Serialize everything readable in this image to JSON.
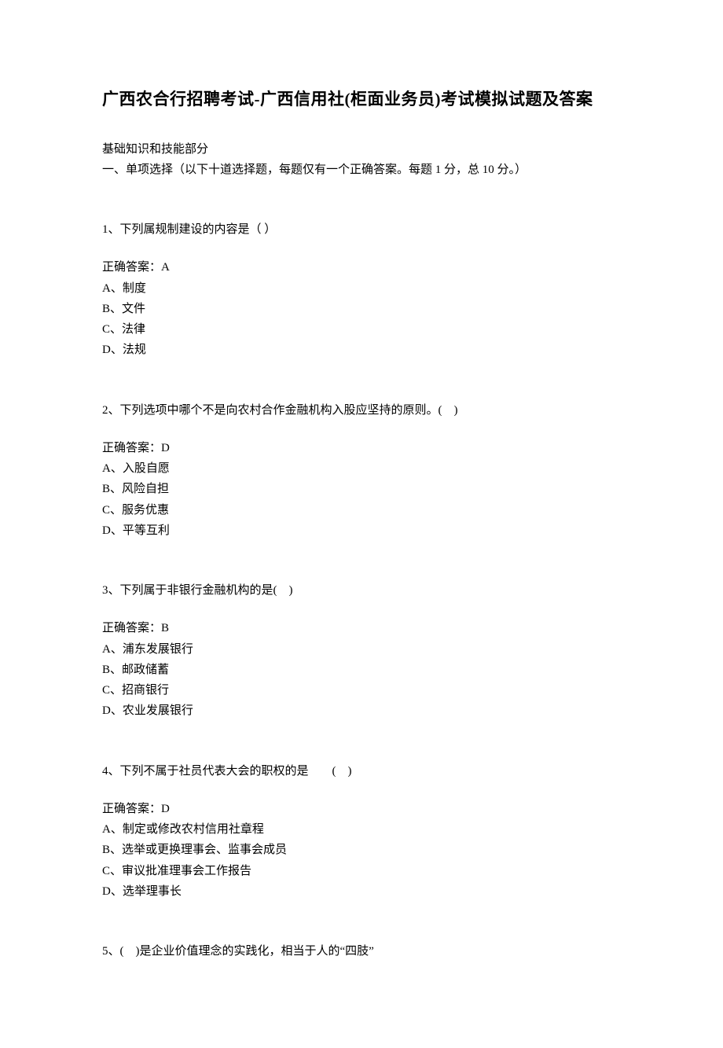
{
  "title": "广西农合行招聘考试-广西信用社(柜面业务员)考试模拟试题及答案",
  "intro": {
    "line1": "基础知识和技能部分",
    "line2": "一、单项选择（以下十道选择题，每题仅有一个正确答案。每题 1 分，总 10 分。）"
  },
  "questions": [
    {
      "q": "1、下列属规制建设的内容是（ ）",
      "answer": "正确答案：A",
      "options": [
        "A、制度",
        "B、文件",
        "C、法律",
        "D、法规"
      ]
    },
    {
      "q": "2、下列选项中哪个不是向农村合作金融机构入股应坚持的原则。( )",
      "answer": "正确答案：D",
      "options": [
        "A、入股自愿",
        "B、风险自担",
        "C、服务优惠",
        "D、平等互利"
      ]
    },
    {
      "q": "3、下列属于非银行金融机构的是( )",
      "answer": "正确答案：B",
      "options": [
        "A、浦东发展银行",
        "B、邮政储蓄",
        "C、招商银行",
        "D、农业发展银行"
      ]
    },
    {
      "q": "4、下列不属于社员代表大会的职权的是  ( )",
      "answer": "正确答案：D",
      "options": [
        "A、制定或修改农村信用社章程",
        "B、选举或更换理事会、监事会成员",
        "C、审议批准理事会工作报告",
        "D、选举理事长"
      ]
    },
    {
      "q": "5、( )是企业价值理念的实践化，相当于人的“四肢”",
      "answer": "",
      "options": []
    }
  ],
  "colors": {
    "text": "#000000",
    "background": "#ffffff"
  },
  "typography": {
    "title_fontsize": 21,
    "body_fontsize": 15,
    "title_weight": "bold",
    "font_family": "SimSun"
  }
}
